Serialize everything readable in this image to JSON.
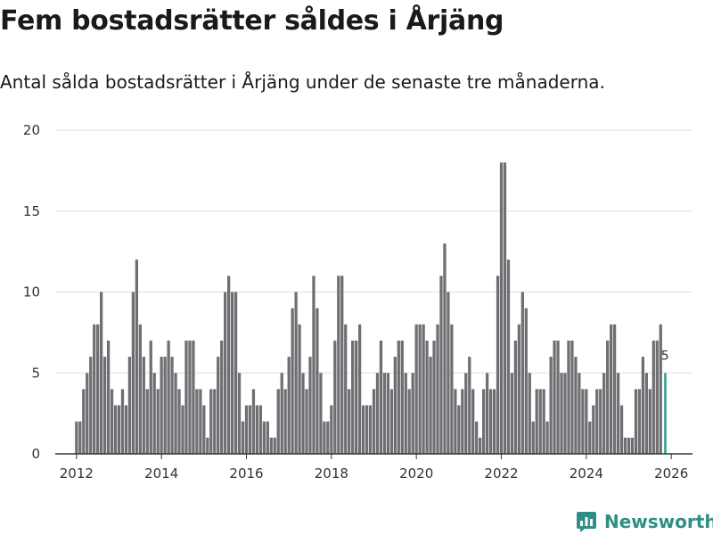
{
  "header": {
    "title": "Fem bostadsrätter såldes i Årjäng",
    "subtitle": "Antal sålda bostadsrätter i Årjäng under de senaste tre månaderna."
  },
  "brand": {
    "name": "Newsworthy",
    "icon": "bar-chart-logo-icon"
  },
  "colors": {
    "bar": "#6e6e73",
    "highlight": "#2a9d8f",
    "grid": "#dddddd",
    "axis": "#333333",
    "text": "#333333"
  },
  "chart_data": {
    "type": "bar",
    "xlabel": "",
    "ylabel": "",
    "grid": true,
    "ylim": [
      0,
      20
    ],
    "yticks": [
      0,
      5,
      10,
      15,
      20
    ],
    "xlim": [
      2011.5,
      2026.5
    ],
    "xticks": [
      2012,
      2014,
      2016,
      2018,
      2020,
      2022,
      2024,
      2026
    ],
    "start": "2012-01",
    "frequency": "monthly",
    "values": [
      2,
      2,
      4,
      5,
      6,
      8,
      8,
      10,
      6,
      7,
      4,
      3,
      3,
      4,
      3,
      6,
      10,
      12,
      8,
      6,
      4,
      7,
      5,
      4,
      6,
      6,
      7,
      6,
      5,
      4,
      3,
      7,
      7,
      7,
      4,
      4,
      3,
      1,
      4,
      4,
      6,
      7,
      10,
      11,
      10,
      10,
      5,
      2,
      3,
      3,
      4,
      3,
      3,
      2,
      2,
      1,
      1,
      4,
      5,
      4,
      6,
      9,
      10,
      8,
      5,
      4,
      6,
      11,
      9,
      5,
      2,
      2,
      3,
      7,
      11,
      11,
      8,
      4,
      7,
      7,
      8,
      3,
      3,
      3,
      4,
      5,
      7,
      5,
      5,
      4,
      6,
      7,
      7,
      5,
      4,
      5,
      8,
      8,
      8,
      7,
      6,
      7,
      8,
      11,
      13,
      10,
      8,
      4,
      3,
      4,
      5,
      6,
      4,
      2,
      1,
      4,
      5,
      4,
      4,
      11,
      18,
      18,
      12,
      5,
      7,
      8,
      10,
      9,
      5,
      2,
      4,
      4,
      4,
      2,
      6,
      7,
      7,
      5,
      5,
      7,
      7,
      6,
      5,
      4,
      4,
      2,
      3,
      4,
      4,
      5,
      7,
      8,
      8,
      5,
      3,
      1,
      1,
      1,
      4,
      4,
      6,
      5,
      4,
      7,
      7,
      8,
      5
    ],
    "highlight_label": "5"
  }
}
